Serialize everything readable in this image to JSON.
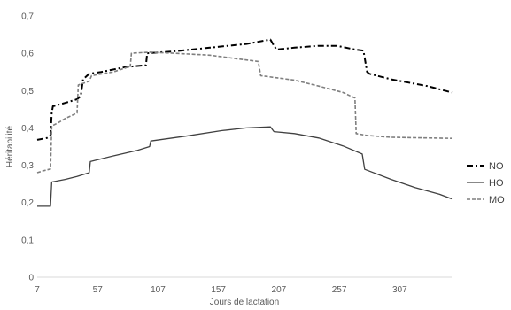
{
  "chart_data": {
    "type": "line",
    "title": "",
    "xlabel": "Jours de lactation",
    "ylabel": "Héritabilité",
    "xlim": [
      7,
      350
    ],
    "ylim": [
      0,
      0.7
    ],
    "x_ticks": [
      7,
      57,
      107,
      157,
      207,
      257,
      307
    ],
    "x_tick_labels": [
      "7",
      "57",
      "107",
      "157",
      "207",
      "257",
      "307"
    ],
    "y_ticks": [
      0,
      0.1,
      0.2,
      0.3,
      0.4,
      0.5,
      0.6,
      0.7
    ],
    "y_tick_labels": [
      "0",
      "0,1",
      "0,2",
      "0,3",
      "0,4",
      "0,5",
      "0,6",
      "0,7"
    ],
    "grid": false,
    "legend_position": "right",
    "series": [
      {
        "name": "NO",
        "style": "dash-dot",
        "color": "#000000",
        "points": [
          [
            7,
            0.368
          ],
          [
            15,
            0.373
          ],
          [
            18,
            0.38
          ],
          [
            19,
            0.44
          ],
          [
            20,
            0.458
          ],
          [
            30,
            0.467
          ],
          [
            40,
            0.477
          ],
          [
            43,
            0.485
          ],
          [
            45,
            0.53
          ],
          [
            50,
            0.545
          ],
          [
            60,
            0.55
          ],
          [
            80,
            0.563
          ],
          [
            97,
            0.568
          ],
          [
            98,
            0.6
          ],
          [
            120,
            0.605
          ],
          [
            150,
            0.615
          ],
          [
            180,
            0.625
          ],
          [
            200,
            0.637
          ],
          [
            203,
            0.62
          ],
          [
            205,
            0.61
          ],
          [
            220,
            0.615
          ],
          [
            240,
            0.62
          ],
          [
            255,
            0.62
          ],
          [
            270,
            0.61
          ],
          [
            277,
            0.607
          ],
          [
            280,
            0.55
          ],
          [
            282,
            0.545
          ],
          [
            300,
            0.53
          ],
          [
            330,
            0.512
          ],
          [
            350,
            0.495
          ]
        ]
      },
      {
        "name": "HO",
        "style": "solid",
        "color": "#404040",
        "points": [
          [
            7,
            0.19
          ],
          [
            18,
            0.19
          ],
          [
            19,
            0.255
          ],
          [
            30,
            0.262
          ],
          [
            40,
            0.27
          ],
          [
            50,
            0.28
          ],
          [
            51,
            0.31
          ],
          [
            70,
            0.325
          ],
          [
            90,
            0.34
          ],
          [
            100,
            0.35
          ],
          [
            101,
            0.365
          ],
          [
            130,
            0.378
          ],
          [
            160,
            0.393
          ],
          [
            180,
            0.4
          ],
          [
            200,
            0.403
          ],
          [
            203,
            0.39
          ],
          [
            220,
            0.385
          ],
          [
            240,
            0.373
          ],
          [
            260,
            0.352
          ],
          [
            276,
            0.33
          ],
          [
            278,
            0.289
          ],
          [
            300,
            0.262
          ],
          [
            320,
            0.24
          ],
          [
            340,
            0.222
          ],
          [
            350,
            0.21
          ]
        ]
      },
      {
        "name": "MO",
        "style": "dashed",
        "color": "#7f7f7f",
        "points": [
          [
            7,
            0.28
          ],
          [
            12,
            0.285
          ],
          [
            18,
            0.29
          ],
          [
            19,
            0.405
          ],
          [
            25,
            0.415
          ],
          [
            30,
            0.425
          ],
          [
            40,
            0.44
          ],
          [
            41,
            0.515
          ],
          [
            50,
            0.525
          ],
          [
            52,
            0.54
          ],
          [
            70,
            0.55
          ],
          [
            84,
            0.565
          ],
          [
            85,
            0.6
          ],
          [
            100,
            0.603
          ],
          [
            120,
            0.6
          ],
          [
            150,
            0.595
          ],
          [
            180,
            0.582
          ],
          [
            190,
            0.578
          ],
          [
            192,
            0.54
          ],
          [
            220,
            0.528
          ],
          [
            240,
            0.512
          ],
          [
            260,
            0.495
          ],
          [
            270,
            0.48
          ],
          [
            271,
            0.385
          ],
          [
            280,
            0.38
          ],
          [
            300,
            0.375
          ],
          [
            350,
            0.372
          ]
        ]
      }
    ]
  }
}
